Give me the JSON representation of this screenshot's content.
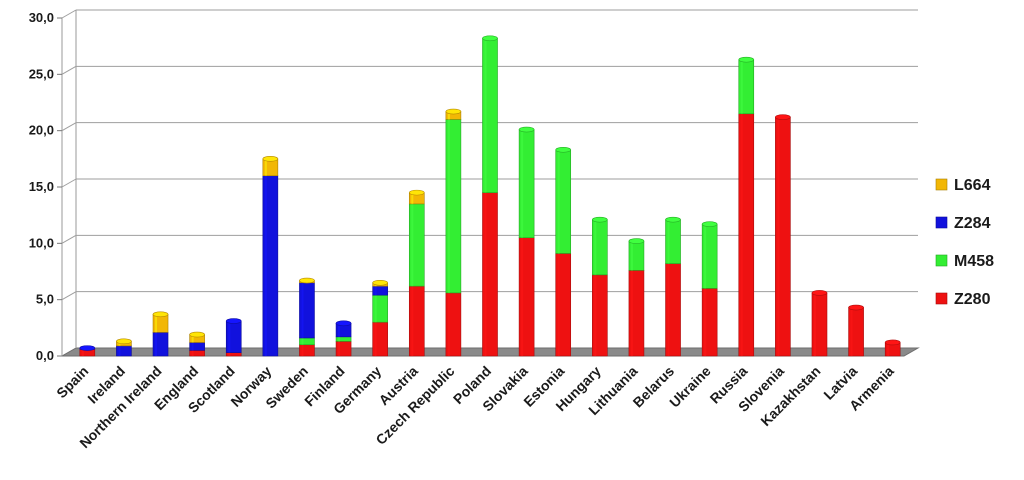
{
  "chart_data": {
    "type": "bar",
    "stacked": true,
    "title": "",
    "xlabel": "",
    "ylabel": "",
    "ylim": [
      0,
      30
    ],
    "yticks": [
      "0,0",
      "5,0",
      "10,0",
      "15,0",
      "20,0",
      "25,0",
      "30,0"
    ],
    "grid": true,
    "legend_position": "right",
    "categories": [
      "Spain",
      "Ireland",
      "Northern Ireland",
      "England",
      "Scotland",
      "Norway",
      "Sweden",
      "Finland",
      "Germany",
      "Austria",
      "Czech Republic",
      "Poland",
      "Slovakia",
      "Estonia",
      "Hungary",
      "Lithuania",
      "Belarus",
      "Ukraine",
      "Russia",
      "Slovenia",
      "Kazakhstan",
      "Latvia",
      "Armenia"
    ],
    "series": [
      {
        "name": "Z280",
        "color": "#ee1111",
        "values": [
          0.6,
          0.0,
          0.0,
          0.5,
          0.3,
          0.0,
          1.0,
          1.3,
          3.0,
          6.2,
          5.6,
          14.5,
          10.5,
          9.1,
          7.2,
          7.6,
          8.2,
          6.0,
          21.5,
          21.2,
          5.6,
          4.3,
          1.2
        ]
      },
      {
        "name": "M458",
        "color": "#33ee33",
        "values": [
          0.0,
          0.0,
          0.0,
          0.0,
          0.0,
          0.0,
          0.6,
          0.4,
          2.4,
          7.3,
          15.4,
          13.7,
          9.6,
          9.2,
          4.9,
          2.6,
          3.9,
          5.7,
          4.8,
          0.0,
          0.0,
          0.0,
          0.0
        ]
      },
      {
        "name": "Z284",
        "color": "#1111dd",
        "values": [
          0.1,
          0.9,
          2.1,
          0.7,
          2.8,
          16.0,
          4.9,
          1.2,
          0.8,
          0.0,
          0.0,
          0.0,
          0.0,
          0.0,
          0.0,
          0.0,
          0.0,
          0.0,
          0.0,
          0.0,
          0.0,
          0.0,
          0.0
        ]
      },
      {
        "name": "L664",
        "color": "#f2b705",
        "values": [
          0.0,
          0.4,
          1.6,
          0.7,
          0.0,
          1.5,
          0.2,
          0.0,
          0.3,
          1.0,
          0.7,
          0.0,
          0.0,
          0.0,
          0.0,
          0.0,
          0.0,
          0.0,
          0.0,
          0.0,
          0.0,
          0.0,
          0.0
        ]
      }
    ],
    "legend_order": [
      "L664",
      "Z284",
      "M458",
      "Z280"
    ]
  }
}
